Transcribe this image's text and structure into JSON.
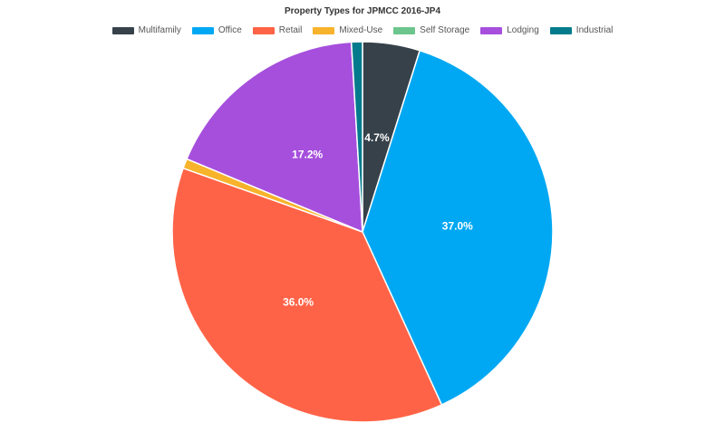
{
  "chart_data": {
    "type": "pie",
    "title": "Property Types for JPMCC 2016-JP4",
    "legend_position": "top",
    "slices": [
      {
        "name": "Multifamily",
        "value": 4.7,
        "color": "#36414a",
        "label": "4.7%"
      },
      {
        "name": "Office",
        "value": 37.0,
        "color": "#00a8f3",
        "label": "37.0%"
      },
      {
        "name": "Retail",
        "value": 36.0,
        "color": "#ff6347",
        "label": "36.0%"
      },
      {
        "name": "Mixed-Use",
        "value": 0.8,
        "color": "#f7b32b",
        "label": ""
      },
      {
        "name": "Self Storage",
        "value": 0.0,
        "color": "#6cc58c",
        "label": ""
      },
      {
        "name": "Lodging",
        "value": 17.2,
        "color": "#a64fdd",
        "label": "17.2%"
      },
      {
        "name": "Industrial",
        "value": 0.9,
        "color": "#037b8c",
        "label": ""
      }
    ]
  }
}
